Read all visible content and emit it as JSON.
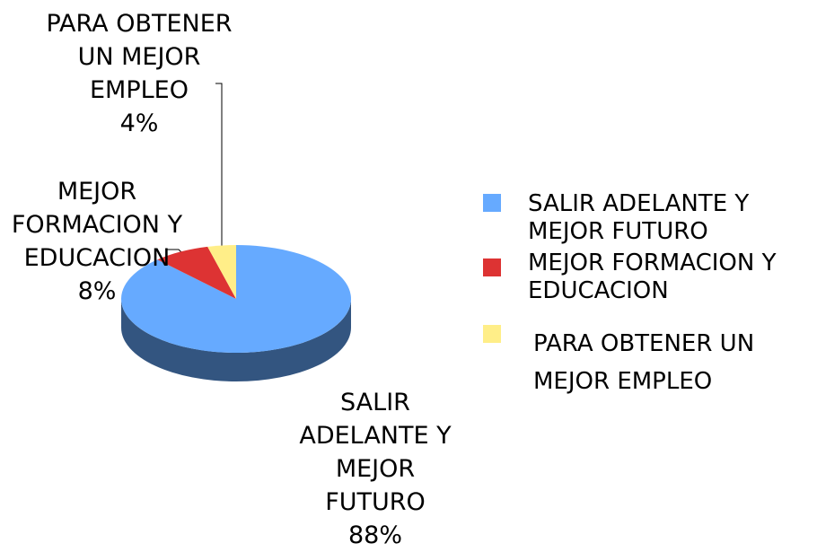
{
  "chart_data": {
    "type": "pie",
    "categories": [
      "SALIR ADELANTE Y MEJOR FUTURO",
      "MEJOR FORMACION Y EDUCACION",
      "PARA OBTENER UN MEJOR EMPLEO"
    ],
    "values": [
      88,
      8,
      4
    ],
    "value_labels": [
      "88%",
      "8%",
      "4%"
    ],
    "colors": [
      "#66aaff",
      "#dd3333",
      "#ffee88"
    ],
    "legend": "right"
  }
}
